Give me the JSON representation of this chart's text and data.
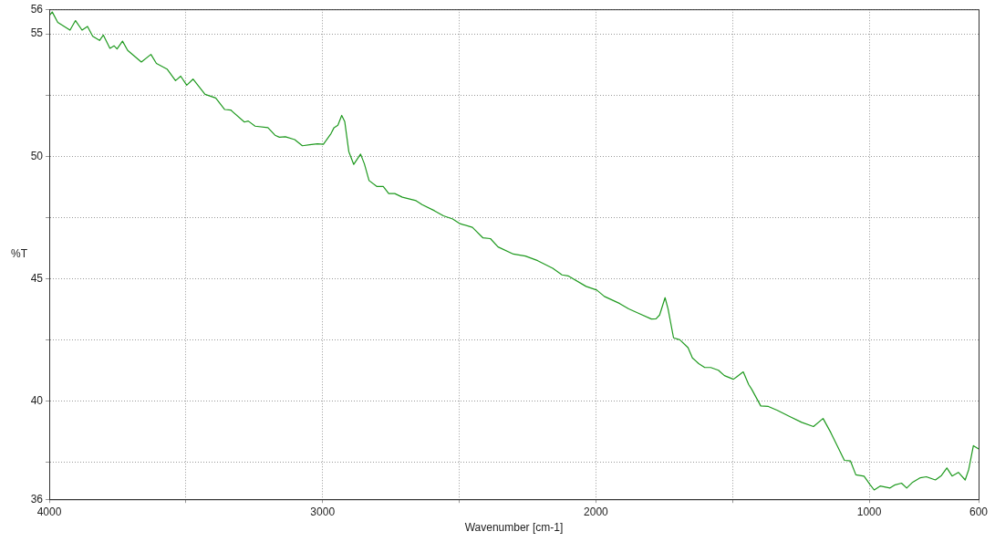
{
  "chart_data": {
    "type": "line",
    "xlabel": "Wavenumber [cm-1]",
    "ylabel": "%T",
    "x": [
      4000,
      3989,
      3969,
      3924,
      3904,
      3880,
      3860,
      3841,
      3816,
      3802,
      3778,
      3763,
      3752,
      3732,
      3713,
      3663,
      3628,
      3608,
      3569,
      3538,
      3519,
      3497,
      3474,
      3430,
      3391,
      3358,
      3336,
      3286,
      3272,
      3247,
      3200,
      3174,
      3158,
      3136,
      3102,
      3074,
      3047,
      3019,
      2997,
      2969,
      2958,
      2944,
      2930,
      2919,
      2904,
      2886,
      2861,
      2847,
      2830,
      2802,
      2778,
      2758,
      2736,
      2708,
      2658,
      2636,
      2591,
      2558,
      2524,
      2497,
      2452,
      2413,
      2386,
      2358,
      2302,
      2258,
      2213,
      2158,
      2124,
      2102,
      2036,
      1997,
      1969,
      1913,
      1880,
      1841,
      1797,
      1780,
      1767,
      1747,
      1736,
      1716,
      1693,
      1663,
      1647,
      1624,
      1602,
      1580,
      1552,
      1530,
      1497,
      1486,
      1461,
      1441,
      1430,
      1397,
      1369,
      1336,
      1291,
      1247,
      1204,
      1169,
      1141,
      1091,
      1069,
      1049,
      1019,
      997,
      982,
      960,
      924,
      908,
      882,
      863,
      841,
      813,
      791,
      758,
      736,
      716,
      697,
      674,
      649,
      636,
      619,
      600
    ],
    "series": [
      {
        "color": "#1f9a1f",
        "values": [
          55.74,
          55.89,
          55.47,
          55.15,
          55.54,
          55.15,
          55.3,
          54.9,
          54.73,
          54.95,
          54.41,
          54.51,
          54.38,
          54.7,
          54.32,
          53.85,
          54.16,
          53.79,
          53.56,
          53.09,
          53.27,
          52.9,
          53.15,
          52.53,
          52.38,
          51.91,
          51.89,
          51.4,
          51.44,
          51.23,
          51.17,
          50.86,
          50.78,
          50.8,
          50.68,
          50.43,
          50.47,
          50.51,
          50.49,
          50.93,
          51.17,
          51.27,
          51.67,
          51.42,
          50.19,
          49.67,
          50.09,
          49.69,
          49.01,
          48.77,
          48.77,
          48.48,
          48.48,
          48.33,
          48.19,
          48.03,
          47.78,
          47.57,
          47.44,
          47.25,
          47.1,
          46.67,
          46.64,
          46.3,
          46.01,
          45.93,
          45.74,
          45.43,
          45.16,
          45.12,
          44.69,
          44.54,
          44.28,
          43.99,
          43.77,
          43.58,
          43.36,
          43.37,
          43.52,
          44.23,
          43.77,
          42.59,
          42.51,
          42.19,
          41.77,
          41.54,
          41.38,
          41.38,
          41.27,
          41.05,
          40.9,
          40.99,
          41.2,
          40.68,
          40.49,
          39.81,
          39.79,
          39.63,
          39.38,
          39.14,
          38.97,
          39.3,
          38.73,
          37.59,
          37.57,
          37.0,
          36.94,
          36.6,
          36.38,
          36.54,
          36.46,
          36.58,
          36.66,
          36.46,
          36.7,
          36.88,
          36.92,
          36.79,
          36.97,
          37.28,
          36.95,
          37.1,
          36.79,
          37.22,
          38.19,
          38.06
        ]
      }
    ],
    "xlim": [
      4000,
      600
    ],
    "xticks": [
      4000,
      {
        "value": 3500,
        "label": null
      },
      3000,
      {
        "value": 2500,
        "label": null
      },
      2000,
      {
        "value": 1500,
        "label": null
      },
      1000,
      600
    ],
    "ylim": [
      36,
      56
    ],
    "yticks": [
      36,
      {
        "value": 37.5,
        "label": null
      },
      40,
      {
        "value": 42.5,
        "label": null
      },
      45,
      {
        "value": 47.5,
        "label": null
      },
      50,
      {
        "value": 52.5,
        "label": null
      },
      55,
      56
    ],
    "grid": true,
    "legend": false,
    "marker": "none",
    "line_style": "solid"
  }
}
